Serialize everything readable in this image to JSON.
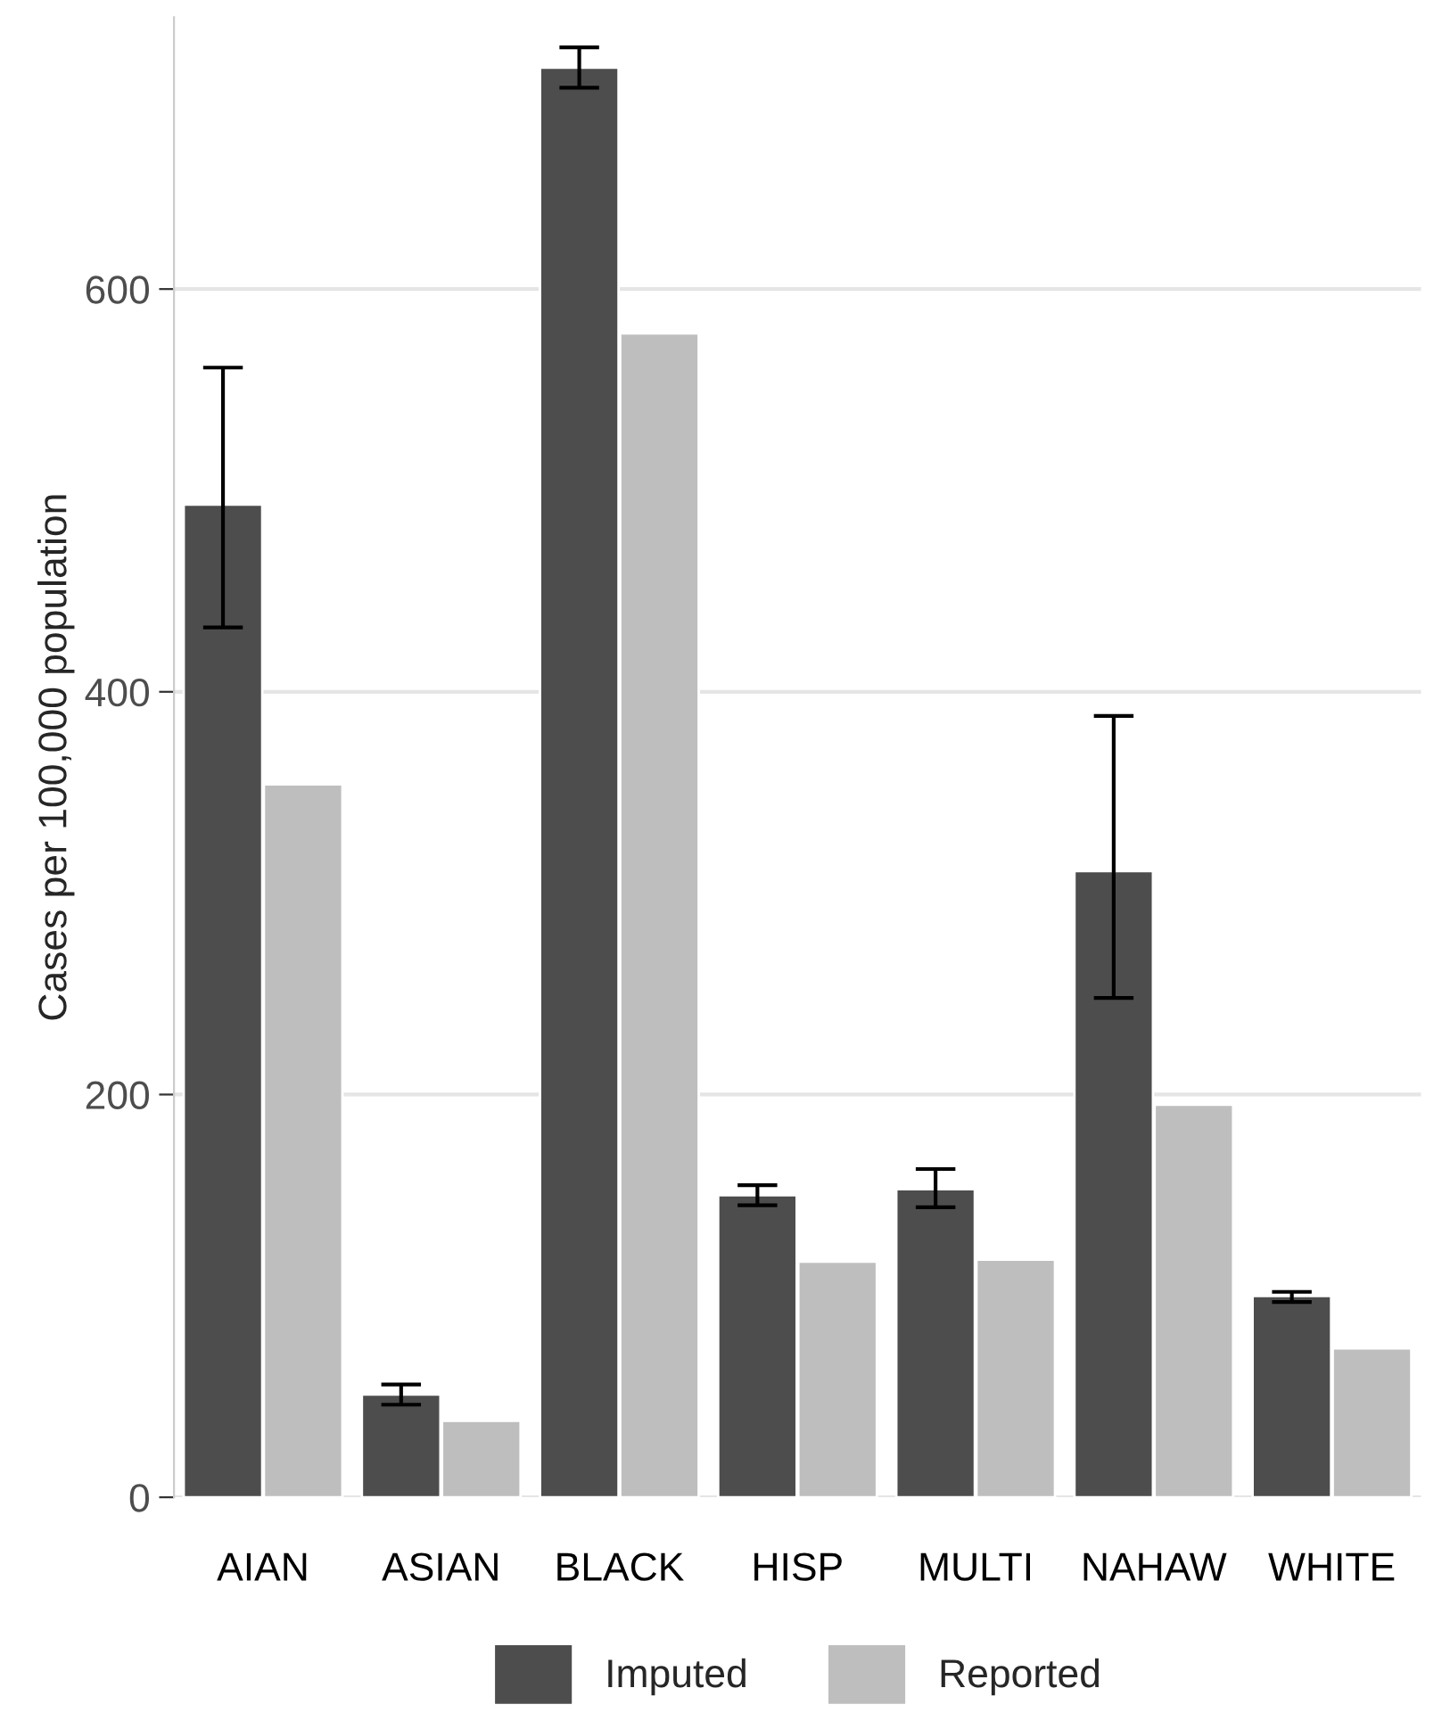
{
  "chart_data": {
    "type": "bar",
    "ylabel": "Cases per 100,000 population",
    "categories": [
      "AIAN",
      "ASIAN",
      "BLACK",
      "HISP",
      "MULTI",
      "NAHAW",
      "WHITE"
    ],
    "series": [
      {
        "name": "Imputed",
        "color": "#4d4d4d",
        "values": [
          493,
          51,
          710,
          150,
          153,
          311,
          100
        ],
        "errors": [
          [
            432,
            561
          ],
          [
            46,
            56
          ],
          [
            700,
            720
          ],
          [
            145,
            155
          ],
          [
            144,
            163
          ],
          [
            248,
            388
          ],
          [
            97,
            102
          ]
        ]
      },
      {
        "name": "Reported",
        "color": "#bebebe",
        "values": [
          354,
          38,
          578,
          117,
          118,
          195,
          74
        ]
      }
    ],
    "ylim": [
      0,
      735
    ],
    "yticks": [
      0,
      200,
      400,
      600
    ],
    "grid": "y",
    "legend": "bottom"
  }
}
